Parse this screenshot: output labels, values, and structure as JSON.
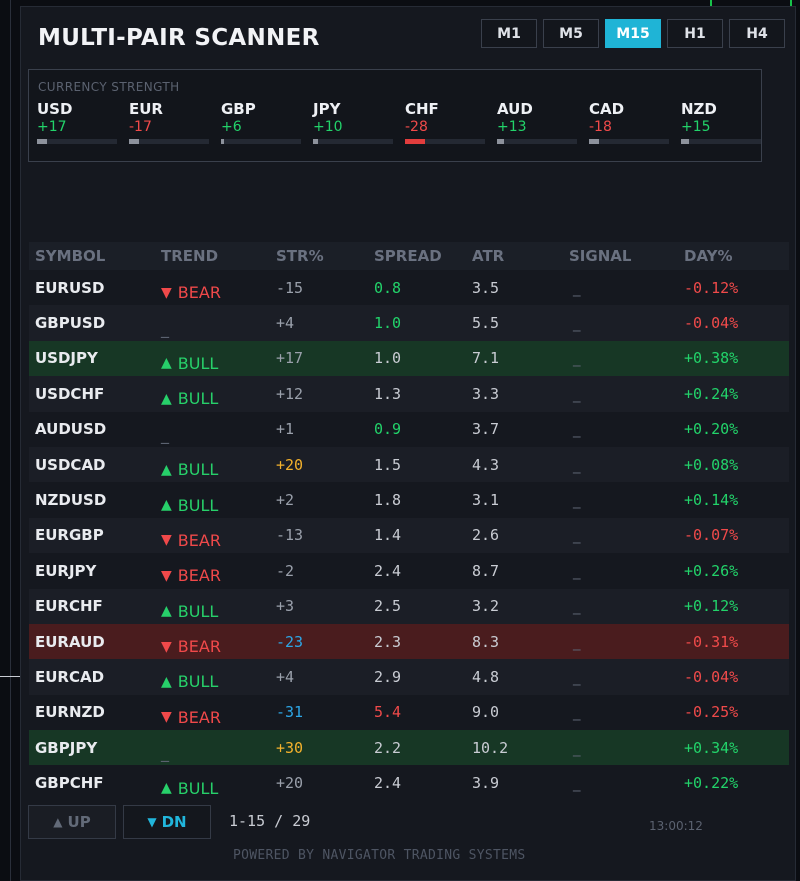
{
  "app": {
    "title": "MULTI-PAIR SCANNER"
  },
  "timeframes": [
    {
      "label": "M1",
      "active": false
    },
    {
      "label": "M5",
      "active": false
    },
    {
      "label": "M15",
      "active": true
    },
    {
      "label": "H1",
      "active": false
    },
    {
      "label": "H4",
      "active": false
    }
  ],
  "strength": {
    "label": "CURRENCY STRENGTH",
    "currencies": [
      {
        "name": "USD",
        "value": "+17",
        "fill_pct": 12
      },
      {
        "name": "EUR",
        "value": "-17",
        "fill_pct": 12
      },
      {
        "name": "GBP",
        "value": "+6",
        "fill_pct": 4
      },
      {
        "name": "JPY",
        "value": "+10",
        "fill_pct": 6
      },
      {
        "name": "CHF",
        "value": "-28",
        "fill_pct": 25,
        "highlight": true
      },
      {
        "name": "AUD",
        "value": "+13",
        "fill_pct": 9
      },
      {
        "name": "CAD",
        "value": "-18",
        "fill_pct": 12
      },
      {
        "name": "NZD",
        "value": "+15",
        "fill_pct": 10
      }
    ]
  },
  "table": {
    "headers": {
      "symbol": "SYMBOL",
      "trend": "TREND",
      "str": "STR%",
      "spread": "SPREAD",
      "atr": "ATR",
      "signal": "SIGNAL",
      "day": "DAY%"
    },
    "rows": [
      {
        "symbol": "EURUSD",
        "trend": "BEAR",
        "str": "-15",
        "str_color": "neutral",
        "spread": "0.8",
        "spread_color": "green",
        "atr": "3.5",
        "signal": "_",
        "day": "-0.12%",
        "highlight": ""
      },
      {
        "symbol": "GBPUSD",
        "trend": "_",
        "str": "+4",
        "str_color": "neutral",
        "spread": "1.0",
        "spread_color": "green",
        "atr": "5.5",
        "signal": "_",
        "day": "-0.04%",
        "highlight": ""
      },
      {
        "symbol": "USDJPY",
        "trend": "BULL",
        "str": "+17",
        "str_color": "neutral",
        "spread": "1.0",
        "spread_color": "white",
        "atr": "7.1",
        "signal": "_",
        "day": "+0.38%",
        "highlight": "bull"
      },
      {
        "symbol": "USDCHF",
        "trend": "BULL",
        "str": "+12",
        "str_color": "neutral",
        "spread": "1.3",
        "spread_color": "white",
        "atr": "3.3",
        "signal": "_",
        "day": "+0.24%",
        "highlight": ""
      },
      {
        "symbol": "AUDUSD",
        "trend": "_",
        "str": "+1",
        "str_color": "neutral",
        "spread": "0.9",
        "spread_color": "green",
        "atr": "3.7",
        "signal": "_",
        "day": "+0.20%",
        "highlight": ""
      },
      {
        "symbol": "USDCAD",
        "trend": "BULL",
        "str": "+20",
        "str_color": "gold",
        "spread": "1.5",
        "spread_color": "white",
        "atr": "4.3",
        "signal": "_",
        "day": "+0.08%",
        "highlight": ""
      },
      {
        "symbol": "NZDUSD",
        "trend": "BULL",
        "str": "+2",
        "str_color": "neutral",
        "spread": "1.8",
        "spread_color": "white",
        "atr": "3.1",
        "signal": "_",
        "day": "+0.14%",
        "highlight": ""
      },
      {
        "symbol": "EURGBP",
        "trend": "BEAR",
        "str": "-13",
        "str_color": "neutral",
        "spread": "1.4",
        "spread_color": "white",
        "atr": "2.6",
        "signal": "_",
        "day": "-0.07%",
        "highlight": ""
      },
      {
        "symbol": "EURJPY",
        "trend": "BEAR",
        "str": "-2",
        "str_color": "neutral",
        "spread": "2.4",
        "spread_color": "white",
        "atr": "8.7",
        "signal": "_",
        "day": "+0.26%",
        "highlight": ""
      },
      {
        "symbol": "EURCHF",
        "trend": "BULL",
        "str": "+3",
        "str_color": "neutral",
        "spread": "2.5",
        "spread_color": "white",
        "atr": "3.2",
        "signal": "_",
        "day": "+0.12%",
        "highlight": ""
      },
      {
        "symbol": "EURAUD",
        "trend": "BEAR",
        "str": "-23",
        "str_color": "blue",
        "spread": "2.3",
        "spread_color": "white",
        "atr": "8.3",
        "signal": "_",
        "day": "-0.31%",
        "highlight": "bear"
      },
      {
        "symbol": "EURCAD",
        "trend": "BULL",
        "str": "+4",
        "str_color": "neutral",
        "spread": "2.9",
        "spread_color": "white",
        "atr": "4.8",
        "signal": "_",
        "day": "-0.04%",
        "highlight": ""
      },
      {
        "symbol": "EURNZD",
        "trend": "BEAR",
        "str": "-31",
        "str_color": "blue",
        "spread": "5.4",
        "spread_color": "red",
        "atr": "9.0",
        "signal": "_",
        "day": "-0.25%",
        "highlight": ""
      },
      {
        "symbol": "GBPJPY",
        "trend": "_",
        "str": "+30",
        "str_color": "gold",
        "spread": "2.2",
        "spread_color": "white",
        "atr": "10.2",
        "signal": "_",
        "day": "+0.34%",
        "highlight": "bull"
      },
      {
        "symbol": "GBPCHF",
        "trend": "BULL",
        "str": "+20",
        "str_color": "neutral",
        "spread": "2.4",
        "spread_color": "white",
        "atr": "3.9",
        "signal": "_",
        "day": "+0.22%",
        "highlight": ""
      }
    ]
  },
  "footer": {
    "up_label": "UP",
    "dn_label": "DN",
    "page_indicator": "1-15 / 29",
    "clock": "13:00:12",
    "powered_by": "POWERED BY NAVIGATOR TRADING SYSTEMS"
  },
  "colors": {
    "accent": "#1fb4d6",
    "bull": "#27d06a",
    "bear": "#f0494a",
    "gold": "#f3b12c",
    "blue": "#2da6e6"
  }
}
